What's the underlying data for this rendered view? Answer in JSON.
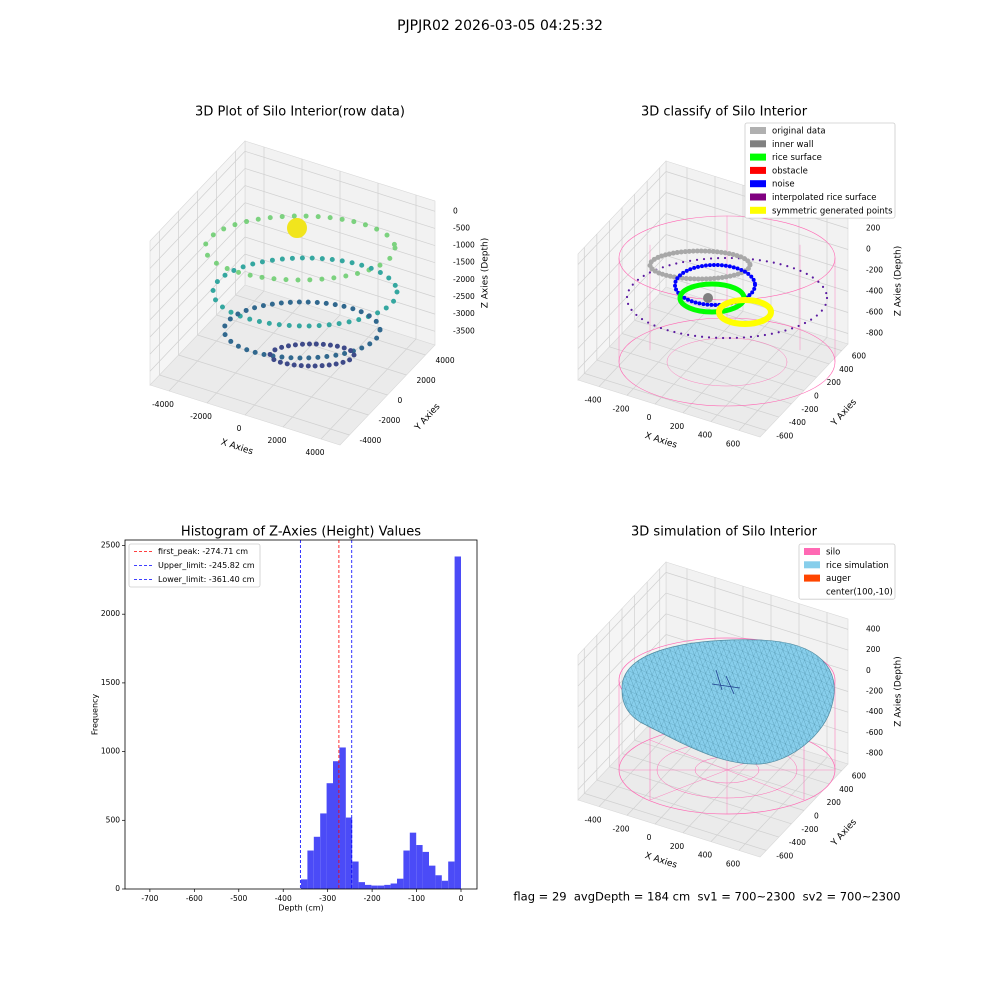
{
  "title": "PJPJR02 2026-03-05 04:25:32",
  "footer": "flag = 29  avgDepth = 184 cm  sv1 = 700~2300  sv2 = 700~2300",
  "chart_data": [
    {
      "type": "scatter3d",
      "title": "3D Plot of Silo Interior(row data)",
      "xlabel": "X Axies",
      "ylabel": "Y Axies",
      "zlabel": "Z Axies (Depth)",
      "xlim": [
        -5000,
        5000
      ],
      "ylim": [
        -5000,
        5000
      ],
      "zlim": [
        -3900,
        300
      ],
      "xticks": [
        -4000,
        -2000,
        0,
        2000,
        4000
      ],
      "yticks": [
        -4000,
        -2000,
        0,
        2000,
        4000
      ],
      "zticks": [
        0,
        -500,
        -1000,
        -1500,
        -2000,
        -2500,
        -3000,
        -3500
      ]
    },
    {
      "type": "scatter3d",
      "title": "3D classify of Silo Interior",
      "xlabel": "X Axies",
      "ylabel": "Y Axies",
      "zlabel": "Z Axies (Depth)",
      "xlim": [
        -550,
        750
      ],
      "ylim": [
        -700,
        700
      ],
      "zlim": [
        -900,
        300
      ],
      "xticks": [
        -400,
        -200,
        0,
        200,
        400,
        600
      ],
      "yticks": [
        -600,
        -400,
        -200,
        0,
        200,
        400,
        600
      ],
      "zticks": [
        200,
        0,
        -200,
        -400,
        -600,
        -800
      ],
      "legend": [
        {
          "name": "original data",
          "color": "#b0b0b0"
        },
        {
          "name": "inner wall",
          "color": "#808080"
        },
        {
          "name": "rice surface",
          "color": "#00ff00"
        },
        {
          "name": "obstacle",
          "color": "#ff0000"
        },
        {
          "name": "noise",
          "color": "#0000ff"
        },
        {
          "name": "interpolated rice surface",
          "color": "#800080"
        },
        {
          "name": "symmetric generated points",
          "color": "#ffff00"
        }
      ]
    },
    {
      "type": "histogram",
      "title": "Histogram of Z-Axies (Height) Values",
      "xlabel": "Depth (cm)",
      "ylabel": "Frequency",
      "color": "#4b4bf7",
      "bins": [
        -360,
        -345.6,
        -331.2,
        -316.8,
        -302.4,
        -288,
        -273.6,
        -259.2,
        -244.8,
        -230.4,
        -216,
        -201.6,
        -187.2,
        -172.8,
        -158.4,
        -144,
        -129.6,
        -115.2,
        -100.8,
        -86.4,
        -72,
        -57.6,
        -43.2,
        -28.8,
        -14.4,
        0
      ],
      "values": [
        70,
        280,
        380,
        550,
        770,
        930,
        1030,
        520,
        200,
        50,
        30,
        25,
        25,
        30,
        40,
        75,
        280,
        410,
        320,
        270,
        170,
        100,
        60,
        200,
        2420
      ],
      "lines": [
        {
          "name": "first_peak: -274.71 cm",
          "value": -274.71,
          "color": "#ff0000"
        },
        {
          "name": "Upper_limit: -245.82 cm",
          "value": -245.82,
          "color": "#0000ff"
        },
        {
          "name": "Lower_limit: -361.40 cm",
          "value": -361.4,
          "color": "#0000ff"
        }
      ],
      "legend_loc": "upper left",
      "xlim": [
        -756,
        36
      ],
      "ylim": [
        0,
        2540
      ],
      "xticks": [
        -700,
        -600,
        -500,
        -400,
        -300,
        -200,
        -100,
        0
      ],
      "yticks": [
        0,
        500,
        1000,
        1500,
        2000,
        2500
      ]
    },
    {
      "type": "surface3d",
      "title": "3D simulation of Silo Interior",
      "xlabel": "X Axies",
      "ylabel": "Y Axies",
      "zlabel": "Z Axies (Depth)",
      "xlim": [
        -550,
        750
      ],
      "ylim": [
        -700,
        700
      ],
      "zlim": [
        -900,
        500
      ],
      "xticks": [
        -400,
        -200,
        0,
        200,
        400,
        600
      ],
      "yticks": [
        -600,
        -400,
        -200,
        0,
        200,
        400,
        600
      ],
      "zticks": [
        400,
        200,
        0,
        -200,
        -400,
        -600,
        -800
      ],
      "legend": [
        {
          "name": "silo",
          "color": "#ff69b4"
        },
        {
          "name": "rice simulation",
          "color": "#87ceeb"
        },
        {
          "name": "auger",
          "color": "#ff4500"
        },
        {
          "name": "center(100,-10)"
        }
      ]
    }
  ]
}
